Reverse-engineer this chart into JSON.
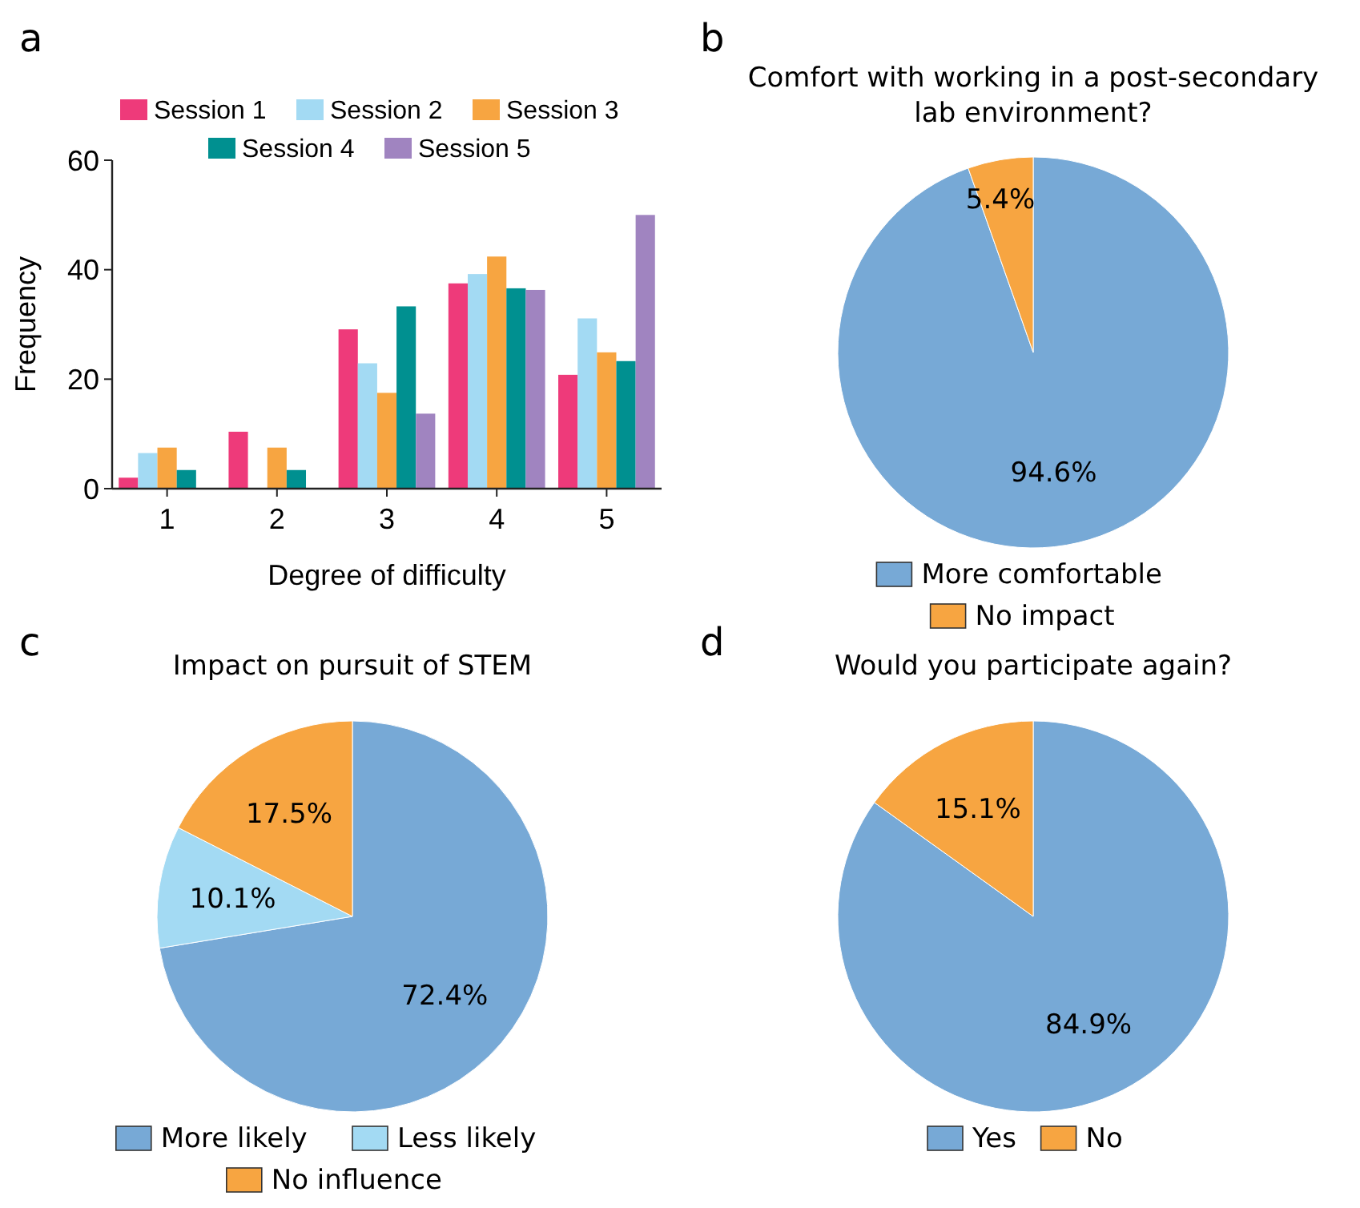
{
  "chart_data": [
    {
      "type": "bar",
      "xlabel": "Degree of difficulty",
      "ylabel": "Frequency",
      "categories": [
        "1",
        "2",
        "3",
        "4",
        "5"
      ],
      "ylim": [
        0,
        60
      ],
      "yticks": [
        0,
        20,
        40,
        60
      ],
      "grid": false,
      "legend": "top",
      "annotations": [
        "a"
      ],
      "series": [
        {
          "name": "Session 1",
          "color": "#ee3a7a",
          "values": [
            2.0,
            10.4,
            29.1,
            37.5,
            20.8
          ]
        },
        {
          "name": "Session 2",
          "color": "#a3daf3",
          "values": [
            6.5,
            0,
            22.9,
            39.2,
            31.1
          ]
        },
        {
          "name": "Session 3",
          "color": "#f7a541",
          "values": [
            7.5,
            7.5,
            17.5,
            42.4,
            24.9
          ]
        },
        {
          "name": "Session 4",
          "color": "#009090",
          "values": [
            3.4,
            3.4,
            33.3,
            36.6,
            23.3
          ]
        },
        {
          "name": "Session 5",
          "color": "#a084c0",
          "values": [
            0,
            0,
            13.7,
            36.3,
            50
          ]
        }
      ]
    },
    {
      "type": "pie",
      "title": "Comfort with working in a post-secondary lab environment?",
      "categories": [
        "More comfortable",
        "No impact"
      ],
      "values": [
        94.6,
        5.4
      ],
      "colors": [
        "#77a9d6",
        "#f7a541"
      ],
      "value_labels": [
        "94.6%",
        "5.4%"
      ],
      "legend": "bottom",
      "annotations": [
        "b"
      ]
    },
    {
      "type": "pie",
      "title": "Impact on pursuit of STEM",
      "categories": [
        "More likely",
        "Less likely",
        "No influence"
      ],
      "values": [
        72.4,
        10.1,
        17.5
      ],
      "colors": [
        "#77a9d6",
        "#a3daf3",
        "#f7a541"
      ],
      "value_labels": [
        "72.4%",
        "10.1%",
        "17.5%"
      ],
      "legend": "bottom",
      "annotations": [
        "c"
      ]
    },
    {
      "type": "pie",
      "title": "Would you participate again?",
      "categories": [
        "Yes",
        "No"
      ],
      "values": [
        84.9,
        15.1
      ],
      "colors": [
        "#77a9d6",
        "#f7a541"
      ],
      "value_labels": [
        "84.9%",
        "15.1%"
      ],
      "legend": "bottom",
      "annotations": [
        "d"
      ]
    }
  ]
}
